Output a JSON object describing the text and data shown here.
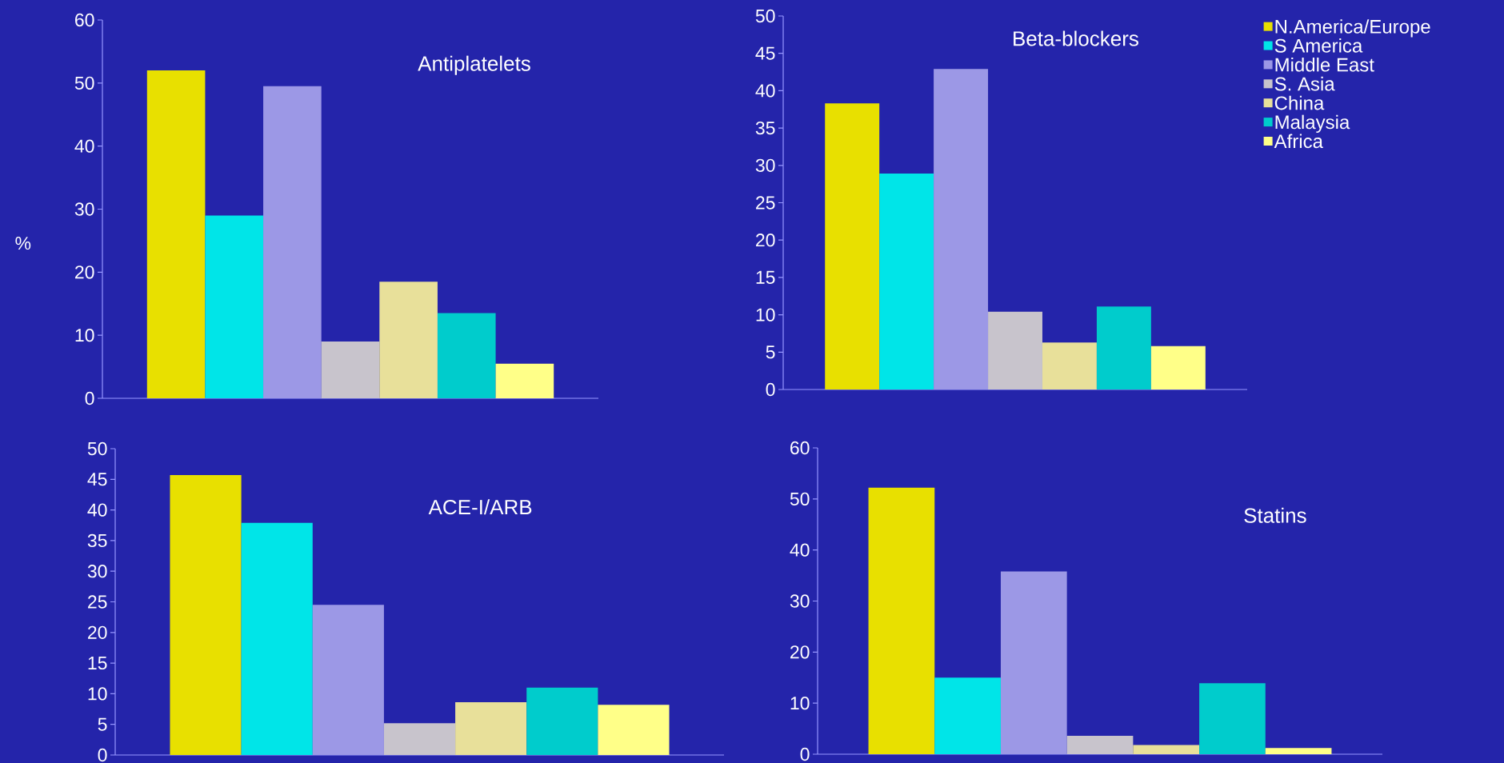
{
  "chart_data": [
    {
      "type": "bar",
      "title": "Antiplatelets",
      "ylabel": "%",
      "categories": [
        null
      ],
      "ylim": [
        0,
        60
      ],
      "yticks": [
        0,
        10,
        20,
        30,
        40,
        50,
        60
      ],
      "series": [
        {
          "color": "#e8e000",
          "values": [
            52
          ]
        },
        {
          "color": "#00e5e8",
          "values": [
            29
          ]
        },
        {
          "color": "#9c98e6",
          "values": [
            49.5
          ]
        },
        {
          "color": "#c8c4cc",
          "values": [
            9
          ]
        },
        {
          "color": "#e8e09a",
          "values": [
            18.5
          ]
        },
        {
          "color": "#00cccc",
          "values": [
            13.5
          ]
        },
        {
          "color": "#ffff88",
          "values": [
            5.5
          ]
        }
      ]
    },
    {
      "type": "bar",
      "title": "Beta-blockers",
      "categories": [
        null
      ],
      "ylim": [
        0,
        50
      ],
      "yticks": [
        0,
        5,
        10,
        15,
        20,
        25,
        30,
        35,
        40,
        45,
        50
      ],
      "legend": "top right",
      "series": [
        {
          "name": "N.America/Europe",
          "color": "#e8e000",
          "values": [
            38.3
          ]
        },
        {
          "name": "S America",
          "color": "#00e5e8",
          "values": [
            28.9
          ]
        },
        {
          "name": "Middle East",
          "color": "#9c98e6",
          "values": [
            42.9
          ]
        },
        {
          "name": "S. Asia",
          "color": "#c8c4cc",
          "values": [
            10.4
          ]
        },
        {
          "name": "China",
          "color": "#e8e09a",
          "values": [
            6.3
          ]
        },
        {
          "name": "Malaysia",
          "color": "#00cccc",
          "values": [
            11.1
          ]
        },
        {
          "name": "Africa",
          "color": "#ffff88",
          "values": [
            5.8
          ]
        }
      ]
    },
    {
      "type": "bar",
      "title": "ACE-I/ARB",
      "categories": [
        null
      ],
      "ylim": [
        0,
        50
      ],
      "yticks": [
        0,
        5,
        10,
        15,
        20,
        25,
        30,
        35,
        40,
        45,
        50
      ],
      "series": [
        {
          "color": "#e8e000",
          "values": [
            45.7
          ]
        },
        {
          "color": "#00e5e8",
          "values": [
            37.9
          ]
        },
        {
          "color": "#9c98e6",
          "values": [
            24.5
          ]
        },
        {
          "color": "#c8c4cc",
          "values": [
            5.2
          ]
        },
        {
          "color": "#e8e09a",
          "values": [
            8.6
          ]
        },
        {
          "color": "#00cccc",
          "values": [
            11
          ]
        },
        {
          "color": "#ffff88",
          "values": [
            8.2
          ]
        }
      ]
    },
    {
      "type": "bar",
      "title": "Statins",
      "categories": [
        null
      ],
      "ylim": [
        0,
        60
      ],
      "yticks": [
        0,
        10,
        20,
        30,
        40,
        50,
        60
      ],
      "series": [
        {
          "color": "#e8e000",
          "values": [
            52.2
          ]
        },
        {
          "color": "#00e5e8",
          "values": [
            15
          ]
        },
        {
          "color": "#9c98e6",
          "values": [
            35.8
          ]
        },
        {
          "color": "#c8c4cc",
          "values": [
            3.6
          ]
        },
        {
          "color": "#e8e09a",
          "values": [
            1.8
          ]
        },
        {
          "color": "#00cccc",
          "values": [
            13.9
          ]
        },
        {
          "color": "#ffff88",
          "values": [
            1.2
          ]
        }
      ]
    }
  ]
}
